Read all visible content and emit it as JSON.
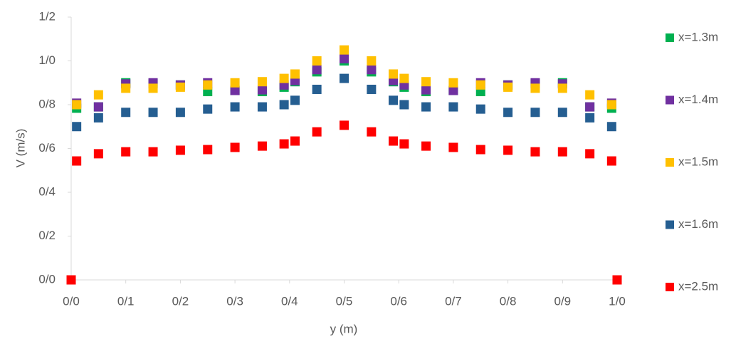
{
  "chart_data": {
    "type": "scatter",
    "x_label": "y (m)",
    "y_label": "V (m/s)",
    "xlim": [
      0,
      1
    ],
    "ylim": [
      0,
      1.2
    ],
    "xticks": [
      {
        "value": 0,
        "label": "0/0"
      },
      {
        "value": 0.1,
        "label": "0/1"
      },
      {
        "value": 0.2,
        "label": "0/2"
      },
      {
        "value": 0.3,
        "label": "0/3"
      },
      {
        "value": 0.4,
        "label": "0/4"
      },
      {
        "value": 0.5,
        "label": "0/5"
      },
      {
        "value": 0.6,
        "label": "0/6"
      },
      {
        "value": 0.7,
        "label": "0/7"
      },
      {
        "value": 0.8,
        "label": "0/8"
      },
      {
        "value": 0.9,
        "label": "0/9"
      },
      {
        "value": 1,
        "label": "1/0"
      }
    ],
    "yticks": [
      {
        "value": 0,
        "label": "0/0"
      },
      {
        "value": 0.2,
        "label": "0/2"
      },
      {
        "value": 0.4,
        "label": "0/4"
      },
      {
        "value": 0.6,
        "label": "0/6"
      },
      {
        "value": 0.8,
        "label": "0/8"
      },
      {
        "value": 1,
        "label": "1/0"
      },
      {
        "value": 1.2,
        "label": "1/2"
      }
    ],
    "grid": false,
    "legend": "right",
    "series": [
      {
        "name": "x=1.3m",
        "color": "#00b050",
        "x": [
          0.01,
          0.05,
          0.1,
          0.15,
          0.2,
          0.25,
          0.3,
          0.35,
          0.39,
          0.41,
          0.45,
          0.5,
          0.55,
          0.59,
          0.61,
          0.65,
          0.7,
          0.75,
          0.8,
          0.85,
          0.9,
          0.95,
          0.99
        ],
        "values": [
          0.784,
          0.79,
          0.9,
          0.895,
          0.89,
          0.86,
          0.865,
          0.86,
          0.88,
          0.905,
          0.95,
          1.0,
          0.95,
          0.905,
          0.88,
          0.86,
          0.865,
          0.86,
          0.89,
          0.895,
          0.9,
          0.79,
          0.784
        ]
      },
      {
        "name": "x=1.4m",
        "color": "#7030a0",
        "x": [
          0.01,
          0.05,
          0.1,
          0.15,
          0.2,
          0.25,
          0.3,
          0.35,
          0.39,
          0.41,
          0.45,
          0.5,
          0.55,
          0.59,
          0.61,
          0.65,
          0.7,
          0.75,
          0.8,
          0.85,
          0.9,
          0.95,
          0.99
        ],
        "values": [
          0.807,
          0.79,
          0.895,
          0.9,
          0.89,
          0.9,
          0.865,
          0.868,
          0.89,
          0.91,
          0.96,
          1.01,
          0.96,
          0.91,
          0.89,
          0.868,
          0.865,
          0.9,
          0.89,
          0.9,
          0.895,
          0.79,
          0.807
        ]
      },
      {
        "name": "x=1.5m",
        "color": "#ffc000",
        "x": [
          0.01,
          0.05,
          0.1,
          0.15,
          0.2,
          0.25,
          0.3,
          0.35,
          0.39,
          0.41,
          0.45,
          0.5,
          0.55,
          0.59,
          0.61,
          0.65,
          0.7,
          0.75,
          0.8,
          0.85,
          0.9,
          0.95,
          0.99
        ],
        "values": [
          0.8,
          0.845,
          0.875,
          0.875,
          0.88,
          0.89,
          0.9,
          0.905,
          0.92,
          0.94,
          1.0,
          1.05,
          1.0,
          0.94,
          0.92,
          0.905,
          0.9,
          0.89,
          0.88,
          0.875,
          0.875,
          0.845,
          0.8
        ]
      },
      {
        "name": "x=1.6m",
        "color": "#255e91",
        "x": [
          0.01,
          0.05,
          0.1,
          0.15,
          0.2,
          0.25,
          0.3,
          0.35,
          0.39,
          0.41,
          0.45,
          0.5,
          0.55,
          0.59,
          0.61,
          0.65,
          0.7,
          0.75,
          0.8,
          0.85,
          0.9,
          0.95,
          0.99
        ],
        "values": [
          0.7,
          0.74,
          0.765,
          0.765,
          0.765,
          0.78,
          0.79,
          0.79,
          0.8,
          0.82,
          0.87,
          0.92,
          0.87,
          0.82,
          0.8,
          0.79,
          0.79,
          0.78,
          0.765,
          0.765,
          0.765,
          0.74,
          0.7
        ]
      },
      {
        "name": "x=2.5m",
        "color": "#ff0000",
        "x": [
          0,
          0.01,
          0.05,
          0.1,
          0.15,
          0.2,
          0.25,
          0.3,
          0.35,
          0.39,
          0.41,
          0.45,
          0.5,
          0.55,
          0.59,
          0.61,
          0.65,
          0.7,
          0.75,
          0.8,
          0.85,
          0.9,
          0.95,
          0.99,
          1
        ],
        "values": [
          0,
          0.543,
          0.576,
          0.585,
          0.585,
          0.592,
          0.595,
          0.605,
          0.611,
          0.621,
          0.634,
          0.676,
          0.706,
          0.676,
          0.634,
          0.621,
          0.611,
          0.605,
          0.595,
          0.592,
          0.585,
          0.585,
          0.576,
          0.543,
          0
        ]
      }
    ]
  }
}
